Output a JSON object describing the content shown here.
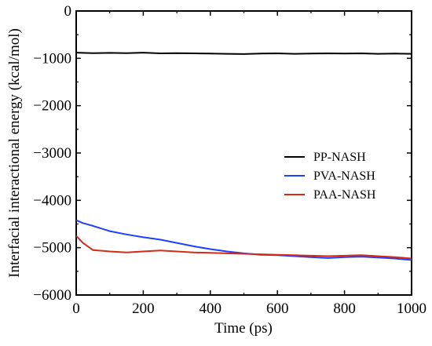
{
  "chart_data": {
    "type": "line",
    "title": "",
    "xlabel": "Time (ps)",
    "ylabel": "Interfacial interactional energy  (kcal/mol)",
    "xlim": [
      0,
      1000
    ],
    "ylim": [
      -6000,
      0
    ],
    "x_ticks": [
      0,
      200,
      400,
      600,
      800,
      1000
    ],
    "y_ticks": [
      0,
      -1000,
      -2000,
      -3000,
      -4000,
      -5000,
      -6000
    ],
    "x_tick_labels": [
      "0",
      "200",
      "400",
      "600",
      "800",
      "1000"
    ],
    "y_tick_labels": [
      "0",
      "−1000",
      "−2000",
      "−3000",
      "−4000",
      "−5000",
      "−6000"
    ],
    "grid": false,
    "legend_position": "right",
    "series": [
      {
        "name": "PP-NASH",
        "color": "#000000",
        "x": [
          0,
          50,
          100,
          150,
          200,
          250,
          300,
          350,
          400,
          450,
          500,
          550,
          600,
          650,
          700,
          750,
          800,
          850,
          900,
          950,
          1000
        ],
        "y": [
          -880,
          -890,
          -885,
          -890,
          -880,
          -895,
          -890,
          -895,
          -900,
          -905,
          -910,
          -900,
          -895,
          -905,
          -900,
          -895,
          -900,
          -895,
          -905,
          -900,
          -905
        ]
      },
      {
        "name": "PVA-NASH",
        "color": "#1f3fff",
        "x": [
          0,
          20,
          50,
          100,
          150,
          200,
          250,
          300,
          350,
          400,
          450,
          500,
          550,
          600,
          650,
          700,
          750,
          800,
          850,
          900,
          950,
          1000
        ],
        "y": [
          -4420,
          -4480,
          -4540,
          -4650,
          -4720,
          -4780,
          -4830,
          -4900,
          -4970,
          -5030,
          -5080,
          -5120,
          -5150,
          -5160,
          -5180,
          -5200,
          -5220,
          -5200,
          -5190,
          -5210,
          -5230,
          -5260
        ]
      },
      {
        "name": "PAA-NASH",
        "color": "#d62a14",
        "x": [
          0,
          20,
          50,
          100,
          150,
          200,
          250,
          300,
          350,
          400,
          450,
          500,
          550,
          600,
          650,
          700,
          750,
          800,
          850,
          900,
          950,
          1000
        ],
        "y": [
          -4750,
          -4900,
          -5050,
          -5080,
          -5100,
          -5080,
          -5060,
          -5080,
          -5100,
          -5110,
          -5120,
          -5130,
          -5140,
          -5150,
          -5160,
          -5170,
          -5180,
          -5170,
          -5160,
          -5180,
          -5200,
          -5230
        ]
      }
    ]
  }
}
